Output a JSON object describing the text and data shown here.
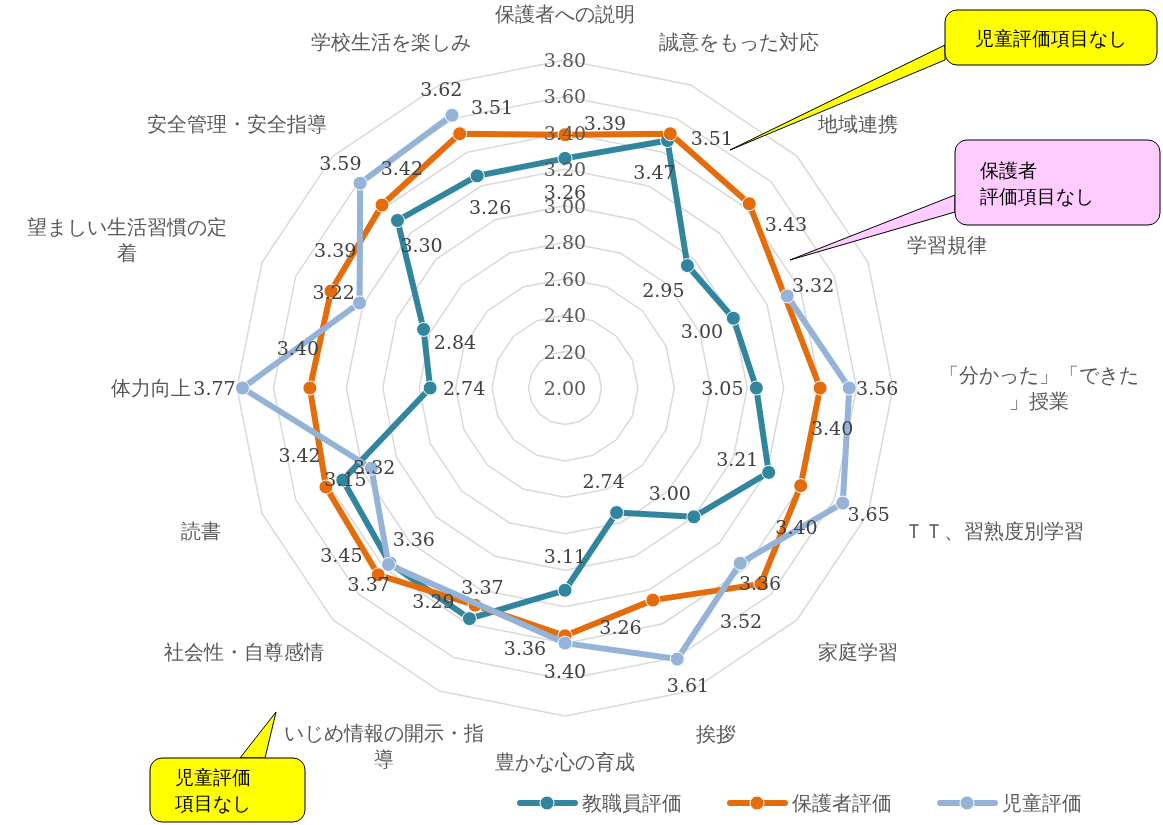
{
  "chart_data": {
    "type": "radar",
    "categories": [
      "保護者への説明",
      "誠意をもった対応",
      "地域連携",
      "学習規律",
      "「分かった」「できた」授業",
      "ＴＴ、習熟度別学習",
      "家庭学習",
      "挨拶",
      "豊かな心の育成",
      "いじめ情報の開示・指導",
      "社会性・自尊感情",
      "読書",
      "体力向上",
      "望ましい生活習慣の定着",
      "安全管理・安全指導",
      "学校生活を楽しみ"
    ],
    "series": [
      {
        "name": "教職員評価",
        "color": "#31859c",
        "values": [
          3.26,
          3.47,
          2.95,
          3.0,
          3.05,
          3.21,
          3.0,
          2.74,
          3.11,
          3.37,
          3.36,
          3.32,
          2.74,
          2.84,
          3.3,
          3.26
        ],
        "value_labels": [
          "3.26",
          "3.47",
          "2.95",
          "3.00",
          "3.05",
          "3.21",
          "3.00",
          "2.74",
          "3.11",
          "3.37",
          "3.36",
          "3.32",
          "2.74",
          "2.84",
          "3.30",
          "3.26"
        ]
      },
      {
        "name": "保護者評価",
        "color": "#e46c0a",
        "values": [
          3.39,
          3.51,
          3.43,
          null,
          3.4,
          3.4,
          3.52,
          3.26,
          3.36,
          3.29,
          3.45,
          3.42,
          3.4,
          3.39,
          3.42,
          3.51
        ],
        "value_labels": [
          "3.39",
          "3.51",
          "3.43",
          null,
          "3.40",
          "3.40",
          "3.52",
          "3.26",
          "3.36",
          "3.29",
          "3.45",
          "3.42",
          "3.40",
          "3.39",
          "3.42",
          "3.51"
        ]
      },
      {
        "name": "児童評価",
        "color": "#95b3d7",
        "values": [
          null,
          null,
          null,
          3.32,
          3.56,
          3.65,
          3.36,
          3.61,
          3.4,
          null,
          3.37,
          3.15,
          3.77,
          3.22,
          3.59,
          3.62
        ],
        "value_labels": [
          null,
          null,
          null,
          "3.32",
          "3.56",
          "3.65",
          "3.36",
          "3.61",
          "3.40",
          null,
          "3.37",
          "3.15",
          "3.77",
          "3.22",
          "3.59",
          "3.62"
        ]
      }
    ],
    "ylim": [
      2.0,
      3.8
    ],
    "yticks": [
      {
        "value": 2.0,
        "label": "2.00"
      },
      {
        "value": 2.2,
        "label": "2.20"
      },
      {
        "value": 2.4,
        "label": "2.40"
      },
      {
        "value": 2.6,
        "label": "2.60"
      },
      {
        "value": 2.8,
        "label": "2.80"
      },
      {
        "value": 3.0,
        "label": "3.00"
      },
      {
        "value": 3.2,
        "label": "3.20"
      },
      {
        "value": 3.4,
        "label": "3.40"
      },
      {
        "value": 3.6,
        "label": "3.60"
      },
      {
        "value": 3.8,
        "label": "3.80"
      }
    ],
    "marker": "circle",
    "grid": true,
    "legend": "bottom",
    "annotations": [
      "児童評価項目なし",
      "保護者評価項目なし",
      "児童評価項目なし"
    ]
  }
}
